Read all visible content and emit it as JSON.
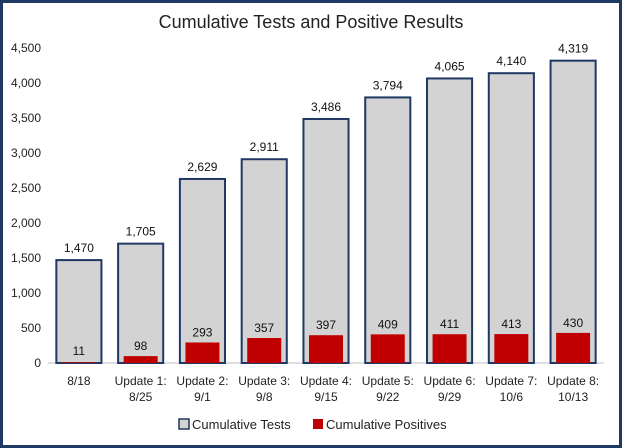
{
  "chart_data": {
    "type": "bar",
    "title": "Cumulative Tests and Positive Results",
    "categories": [
      [
        "8/18"
      ],
      [
        "Update 1:",
        "8/25"
      ],
      [
        "Update 2:",
        "9/1"
      ],
      [
        "Update 3:",
        "9/8"
      ],
      [
        "Update 4:",
        "9/15"
      ],
      [
        "Update 5:",
        "9/22"
      ],
      [
        "Update 6:",
        "9/29"
      ],
      [
        "Update 7:",
        "10/6"
      ],
      [
        "Update 8:",
        "10/13"
      ]
    ],
    "series": [
      {
        "name": "Cumulative Tests",
        "color": "#d3d3d3",
        "stroke": "#1f3864",
        "values": [
          1470,
          1705,
          2629,
          2911,
          3486,
          3794,
          4065,
          4140,
          4319
        ],
        "labels": [
          "1,470",
          "1,705",
          "2,629",
          "2,911",
          "3,486",
          "3,794",
          "4,065",
          "4,140",
          "4,319"
        ]
      },
      {
        "name": "Cumulative Positives",
        "color": "#c00000",
        "stroke": "none",
        "values": [
          11,
          98,
          293,
          357,
          397,
          409,
          411,
          413,
          430
        ],
        "labels": [
          "11",
          "98",
          "293",
          "357",
          "397",
          "409",
          "411",
          "413",
          "430"
        ]
      }
    ],
    "ylim": [
      0,
      4500
    ],
    "yticks": [
      "0",
      "500",
      "1,000",
      "1,500",
      "2,000",
      "2,500",
      "3,000",
      "3,500",
      "4,000",
      "4,500"
    ],
    "ytick_values": [
      0,
      500,
      1000,
      1500,
      2000,
      2500,
      3000,
      3500,
      4000,
      4500
    ],
    "grid": false,
    "legend_position": "bottom"
  }
}
